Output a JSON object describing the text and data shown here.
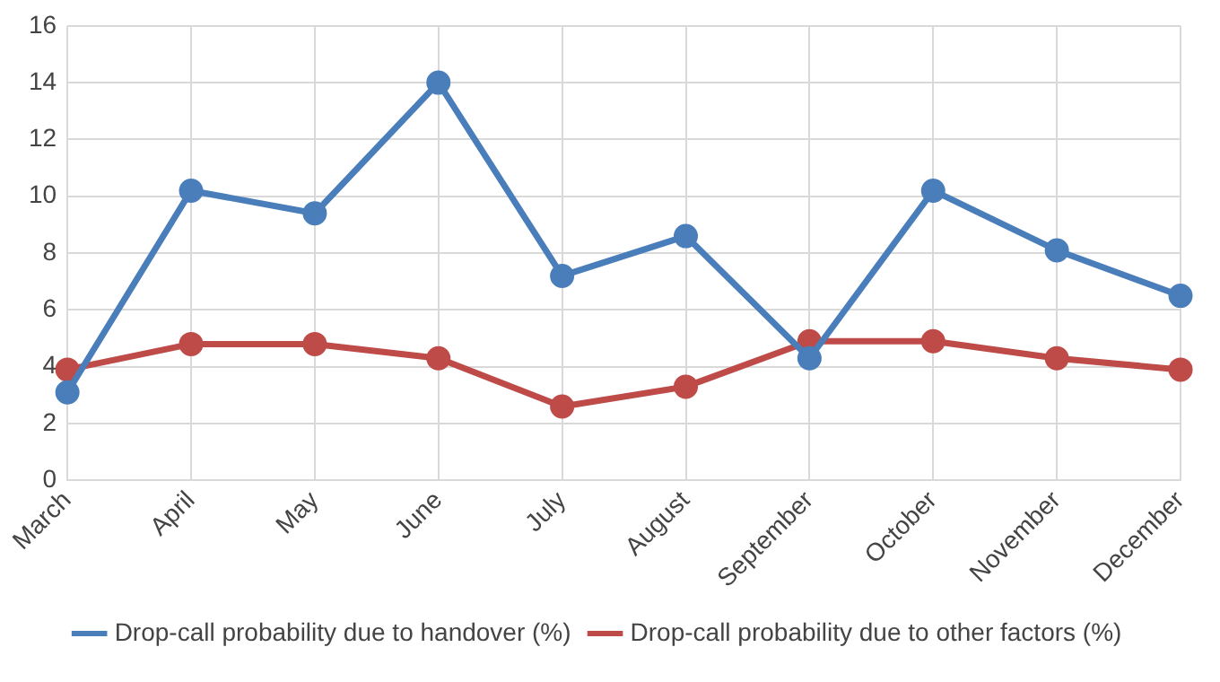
{
  "chart_data": {
    "type": "line",
    "categories": [
      "March",
      "April",
      "May",
      "June",
      "July",
      "August",
      "September",
      "October",
      "November",
      "December"
    ],
    "series": [
      {
        "name": "Drop-call probability due to handover (%)",
        "color": "#4a7ebb",
        "values": [
          3.1,
          10.2,
          9.4,
          14,
          7.2,
          8.6,
          4.3,
          10.2,
          8.1,
          6.5
        ]
      },
      {
        "name": "Drop-call probability due to other factors (%)",
        "color": "#be4b48",
        "values": [
          3.9,
          4.8,
          4.8,
          4.3,
          2.6,
          3.3,
          4.9,
          4.9,
          4.3,
          3.9
        ]
      }
    ],
    "ylim": [
      0,
      16
    ],
    "yticks": [
      0,
      2,
      4,
      6,
      8,
      10,
      12,
      14,
      16
    ],
    "grid": true,
    "legend": "bottom",
    "marker": "circle",
    "line_style": "solid"
  }
}
